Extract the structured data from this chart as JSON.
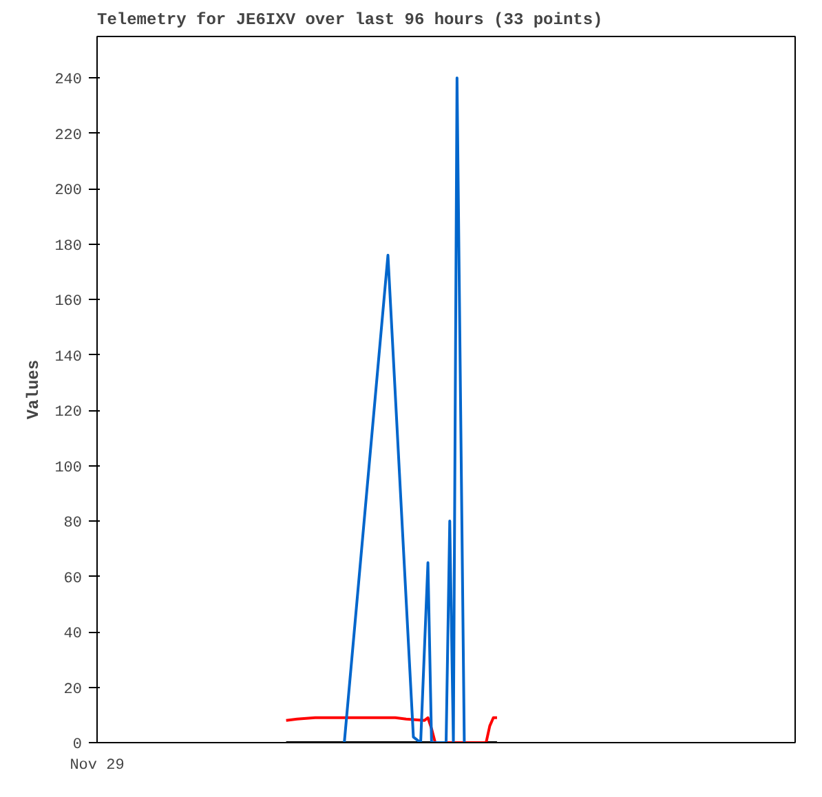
{
  "chart_data": {
    "type": "line",
    "title": "Telemetry for JE6IXV over last 96 hours (33 points)",
    "ylabel": "Values",
    "categories": [
      "Nov 29",
      null,
      null,
      null,
      null,
      null,
      null,
      null,
      null,
      null,
      null,
      null,
      null,
      null,
      null,
      null,
      null,
      null,
      null,
      null,
      null,
      null,
      null,
      null,
      null,
      null,
      null,
      null,
      null,
      null,
      null,
      null,
      null,
      null,
      null,
      null,
      null,
      null,
      null,
      null,
      null,
      null,
      null,
      null,
      null,
      null,
      null,
      null,
      null,
      null,
      null,
      null,
      null,
      null,
      null,
      null,
      null,
      null,
      null,
      null,
      null,
      null,
      null,
      null,
      null,
      null,
      null,
      null,
      null,
      null,
      null,
      null,
      null,
      null,
      null,
      null,
      null,
      null,
      null,
      null,
      null,
      null,
      null,
      null,
      null,
      null,
      null,
      null,
      null,
      null,
      null,
      null,
      null,
      null,
      null,
      null,
      null,
      null,
      null,
      null,
      null,
      null,
      null,
      null,
      null,
      null,
      null,
      null,
      null,
      null,
      null,
      null,
      null,
      null,
      null,
      null,
      null,
      null,
      null,
      null,
      null,
      null,
      null,
      null,
      null,
      null,
      null,
      null,
      null,
      null,
      null,
      null,
      null,
      null,
      null,
      null,
      null,
      null,
      null,
      null,
      null,
      null,
      null,
      null,
      null,
      null,
      null,
      null,
      null,
      null,
      null,
      null,
      null,
      null,
      null,
      null,
      null,
      null,
      null,
      null,
      null,
      null,
      null,
      null,
      null,
      null,
      null,
      null,
      null,
      null,
      null,
      null,
      null,
      null,
      null,
      null,
      null,
      null,
      null,
      null,
      null,
      null,
      null,
      null,
      null,
      null,
      null,
      null,
      null,
      null,
      null,
      null,
      null
    ],
    "ylim": [
      0,
      255
    ],
    "yticks": [
      0,
      20,
      40,
      60,
      80,
      100,
      120,
      140,
      160,
      180,
      200,
      220,
      240
    ],
    "grid": false,
    "series": [
      {
        "color": "#000000",
        "values": [
          null,
          null,
          null,
          null,
          null,
          null,
          null,
          null,
          null,
          null,
          null,
          null,
          null,
          null,
          null,
          null,
          null,
          null,
          null,
          null,
          null,
          null,
          null,
          null,
          null,
          null,
          null,
          null,
          null,
          null,
          null,
          null,
          null,
          null,
          null,
          null,
          null,
          null,
          null,
          null,
          null,
          null,
          null,
          null,
          null,
          null,
          null,
          null,
          null,
          null,
          null,
          null,
          0,
          null,
          null,
          null,
          null,
          null,
          null,
          null,
          null,
          null,
          null,
          null,
          null,
          null,
          null,
          null,
          null,
          null,
          null,
          null,
          null,
          null,
          null,
          null,
          null,
          null,
          null,
          null,
          null,
          null,
          null,
          null,
          null,
          null,
          null,
          null,
          null,
          null,
          null,
          null,
          null,
          null,
          null,
          null,
          null,
          null,
          null,
          null,
          null,
          null,
          null,
          null,
          null,
          null,
          null,
          null,
          null,
          null,
          0,
          null,
          null,
          null,
          null,
          null,
          null,
          null,
          null,
          null,
          null,
          null,
          null,
          null,
          null,
          null,
          null,
          null,
          null,
          null,
          null,
          null,
          null,
          null,
          null,
          null,
          null,
          null,
          null,
          null,
          null,
          null,
          null,
          null,
          null,
          null,
          null,
          null,
          null,
          null,
          null,
          null,
          null,
          null,
          null,
          null,
          null,
          null,
          null,
          null,
          null,
          null,
          null,
          null,
          null,
          null,
          null,
          null,
          null,
          null,
          null,
          null,
          null,
          null,
          null,
          null,
          null,
          null,
          null,
          null,
          null,
          null,
          null,
          null,
          null,
          null,
          null,
          null,
          null,
          null,
          null,
          null,
          null
        ]
      },
      {
        "color": "#ff0000",
        "values": [
          null,
          null,
          null,
          null,
          null,
          null,
          null,
          null,
          null,
          null,
          null,
          null,
          null,
          null,
          null,
          null,
          null,
          null,
          null,
          null,
          null,
          null,
          null,
          null,
          null,
          null,
          null,
          null,
          null,
          null,
          null,
          null,
          null,
          null,
          null,
          null,
          null,
          null,
          null,
          null,
          null,
          null,
          null,
          null,
          null,
          null,
          null,
          null,
          null,
          null,
          null,
          null,
          8,
          null,
          null,
          8.5,
          null,
          null,
          null,
          null,
          9,
          null,
          null,
          null,
          null,
          null,
          null,
          null,
          null,
          null,
          null,
          null,
          null,
          null,
          null,
          null,
          null,
          null,
          null,
          null,
          null,
          null,
          9,
          null,
          null,
          8.5,
          null,
          null,
          null,
          null,
          8,
          9,
          5,
          0,
          null,
          null,
          null,
          null,
          null,
          null,
          null,
          null,
          null,
          null,
          null,
          null,
          null,
          0,
          6,
          9,
          9,
          null,
          null,
          null,
          null,
          null,
          null,
          null,
          null,
          null,
          null,
          null,
          null,
          null,
          null,
          null,
          null,
          null,
          null,
          null,
          null,
          null,
          null,
          null,
          null,
          null,
          null,
          null,
          null,
          null,
          null,
          null,
          null,
          null,
          null,
          null,
          null,
          null,
          null,
          null,
          null,
          null,
          null,
          null,
          null,
          null,
          null,
          null,
          null,
          null,
          null,
          null,
          null,
          null,
          null,
          null,
          null,
          null,
          null,
          null,
          null,
          null,
          null,
          null,
          null,
          null,
          null,
          null,
          null,
          null,
          null,
          null,
          null,
          null,
          null,
          null,
          null,
          null,
          null,
          null,
          null,
          null,
          null
        ]
      },
      {
        "color": "#0066cc",
        "values": [
          null,
          null,
          null,
          null,
          null,
          null,
          null,
          null,
          null,
          null,
          null,
          null,
          null,
          null,
          null,
          null,
          null,
          null,
          null,
          null,
          null,
          null,
          null,
          null,
          null,
          null,
          null,
          null,
          null,
          null,
          null,
          null,
          null,
          null,
          null,
          null,
          null,
          null,
          null,
          null,
          null,
          null,
          null,
          null,
          null,
          null,
          null,
          null,
          null,
          null,
          null,
          null,
          null,
          null,
          null,
          null,
          null,
          null,
          null,
          null,
          null,
          null,
          null,
          null,
          null,
          null,
          null,
          null,
          0,
          null,
          null,
          null,
          null,
          null,
          null,
          null,
          null,
          null,
          null,
          null,
          176,
          null,
          null,
          null,
          null,
          null,
          null,
          2,
          null,
          0,
          null,
          65,
          0,
          null,
          null,
          null,
          0,
          80,
          0,
          240,
          120,
          0,
          null,
          null,
          null,
          null,
          null,
          null,
          null,
          null,
          null,
          null,
          null,
          null,
          null,
          null,
          null,
          null,
          null,
          null,
          null,
          null,
          null,
          null,
          null,
          null,
          null,
          null,
          null,
          null,
          null,
          null,
          null,
          null,
          null,
          null,
          null,
          null,
          null,
          null,
          null,
          null,
          null,
          null,
          null,
          null,
          null,
          null,
          null,
          null,
          null,
          null,
          null,
          null,
          null,
          null,
          null,
          null,
          null,
          null,
          null,
          null,
          null,
          null,
          null,
          null,
          null,
          null,
          null,
          null,
          null,
          null,
          null,
          null,
          null,
          null,
          null,
          null,
          null,
          null,
          null,
          null,
          null,
          null,
          null,
          null,
          null,
          null,
          null,
          null,
          null,
          null,
          null
        ]
      }
    ]
  }
}
